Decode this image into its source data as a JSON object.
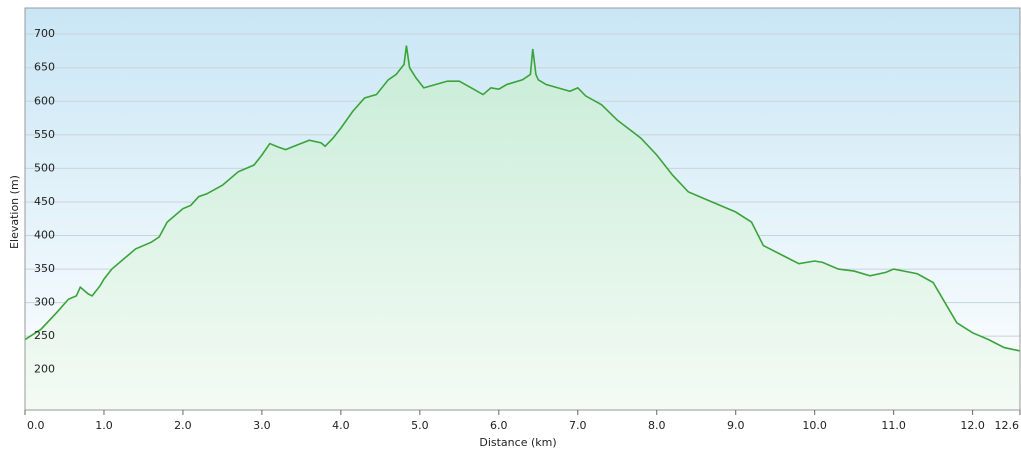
{
  "chart_data": {
    "type": "area",
    "x_label": "Distance  (km)",
    "y_label": "Elevation (m)",
    "x": [
      0.0,
      0.2,
      0.4,
      0.55,
      0.65,
      0.7,
      0.8,
      0.85,
      0.95,
      1.0,
      1.1,
      1.3,
      1.4,
      1.6,
      1.7,
      1.8,
      2.0,
      2.1,
      2.2,
      2.3,
      2.5,
      2.7,
      2.9,
      3.0,
      3.1,
      3.2,
      3.3,
      3.45,
      3.6,
      3.75,
      3.8,
      3.9,
      4.0,
      4.15,
      4.3,
      4.45,
      4.6,
      4.7,
      4.8,
      4.83,
      4.87,
      4.95,
      5.05,
      5.2,
      5.35,
      5.5,
      5.65,
      5.8,
      5.9,
      6.0,
      6.1,
      6.3,
      6.4,
      6.43,
      6.47,
      6.5,
      6.6,
      6.75,
      6.9,
      7.0,
      7.1,
      7.3,
      7.5,
      7.8,
      8.0,
      8.2,
      8.4,
      8.6,
      8.9,
      9.0,
      9.2,
      9.35,
      9.6,
      9.8,
      10.0,
      10.1,
      10.3,
      10.5,
      10.7,
      10.9,
      11.0,
      11.3,
      11.5,
      11.6,
      11.8,
      12.0,
      12.2,
      12.4,
      12.6
    ],
    "values": [
      245,
      260,
      285,
      305,
      310,
      323,
      313,
      310,
      325,
      335,
      350,
      370,
      380,
      390,
      398,
      420,
      440,
      445,
      458,
      462,
      475,
      495,
      505,
      520,
      537,
      532,
      528,
      535,
      542,
      538,
      533,
      545,
      560,
      585,
      605,
      610,
      632,
      640,
      655,
      683,
      650,
      635,
      620,
      625,
      630,
      630,
      620,
      610,
      620,
      618,
      625,
      632,
      640,
      678,
      640,
      632,
      625,
      620,
      615,
      620,
      608,
      595,
      572,
      545,
      520,
      490,
      465,
      455,
      440,
      435,
      420,
      385,
      370,
      358,
      362,
      360,
      350,
      347,
      340,
      345,
      350,
      343,
      330,
      310,
      270,
      255,
      245,
      233,
      228
    ],
    "color": "#3aa33a",
    "xlim": [
      0,
      12.6
    ],
    "xticks": [
      {
        "value": 0,
        "label": "0.0"
      },
      {
        "value": 1,
        "label": "1.0"
      },
      {
        "value": 2,
        "label": "2.0"
      },
      {
        "value": 3,
        "label": "3.0"
      },
      {
        "value": 4,
        "label": "4.0"
      },
      {
        "value": 5,
        "label": "5.0"
      },
      {
        "value": 6,
        "label": "6.0"
      },
      {
        "value": 7,
        "label": "7.0"
      },
      {
        "value": 8,
        "label": "8.0"
      },
      {
        "value": 9,
        "label": "9.0"
      },
      {
        "value": 10,
        "label": "10.0"
      },
      {
        "value": 11,
        "label": "11.0"
      },
      {
        "value": 12,
        "label": "12.0"
      },
      12.6
    ],
    "ylim": [
      140,
      739
    ],
    "yticks": [
      200,
      250,
      300,
      350,
      400,
      450,
      500,
      550,
      600,
      650,
      700
    ],
    "grid": true
  }
}
